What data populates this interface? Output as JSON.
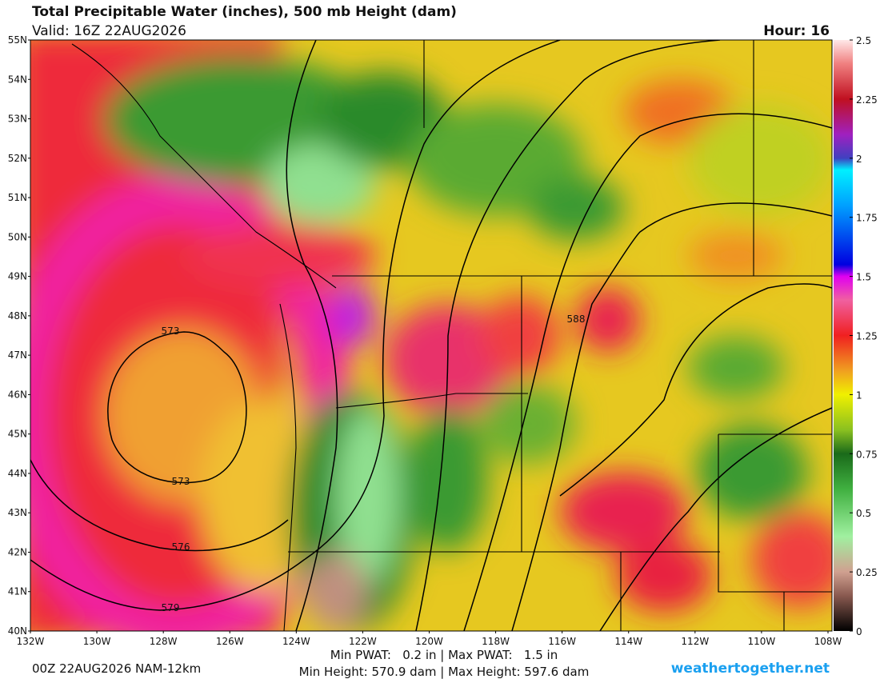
{
  "header": {
    "title": "Total Precipitable Water (inches), 500 mb Height (dam)",
    "valid": "Valid: 16Z 22AUG2026",
    "hour": "Hour: 16"
  },
  "map": {
    "lat_labels": [
      "55N",
      "54N",
      "53N",
      "52N",
      "51N",
      "50N",
      "49N",
      "48N",
      "47N",
      "46N",
      "45N",
      "44N",
      "43N",
      "42N",
      "41N",
      "40N"
    ],
    "lon_labels": [
      "132W",
      "130W",
      "128W",
      "126W",
      "124W",
      "122W",
      "120W",
      "118W",
      "116W",
      "114W",
      "112W",
      "110W",
      "108W"
    ],
    "contour_labels": [
      573,
      573,
      576,
      579,
      588
    ]
  },
  "colorbar": {
    "range": [
      0,
      2.5
    ],
    "ticks": [
      2.5,
      2.25,
      2,
      1.75,
      1.5,
      1.25,
      1,
      0.75,
      0.5,
      0.25,
      0
    ]
  },
  "footer": {
    "run": "00Z 22AUG2026 NAM-12km",
    "pwat": "Min PWAT:   0.2 in | Max PWAT:   1.5 in",
    "height": "Min Height: 570.9 dam | Max Height: 597.6 dam",
    "site": "weathertogether.net"
  }
}
